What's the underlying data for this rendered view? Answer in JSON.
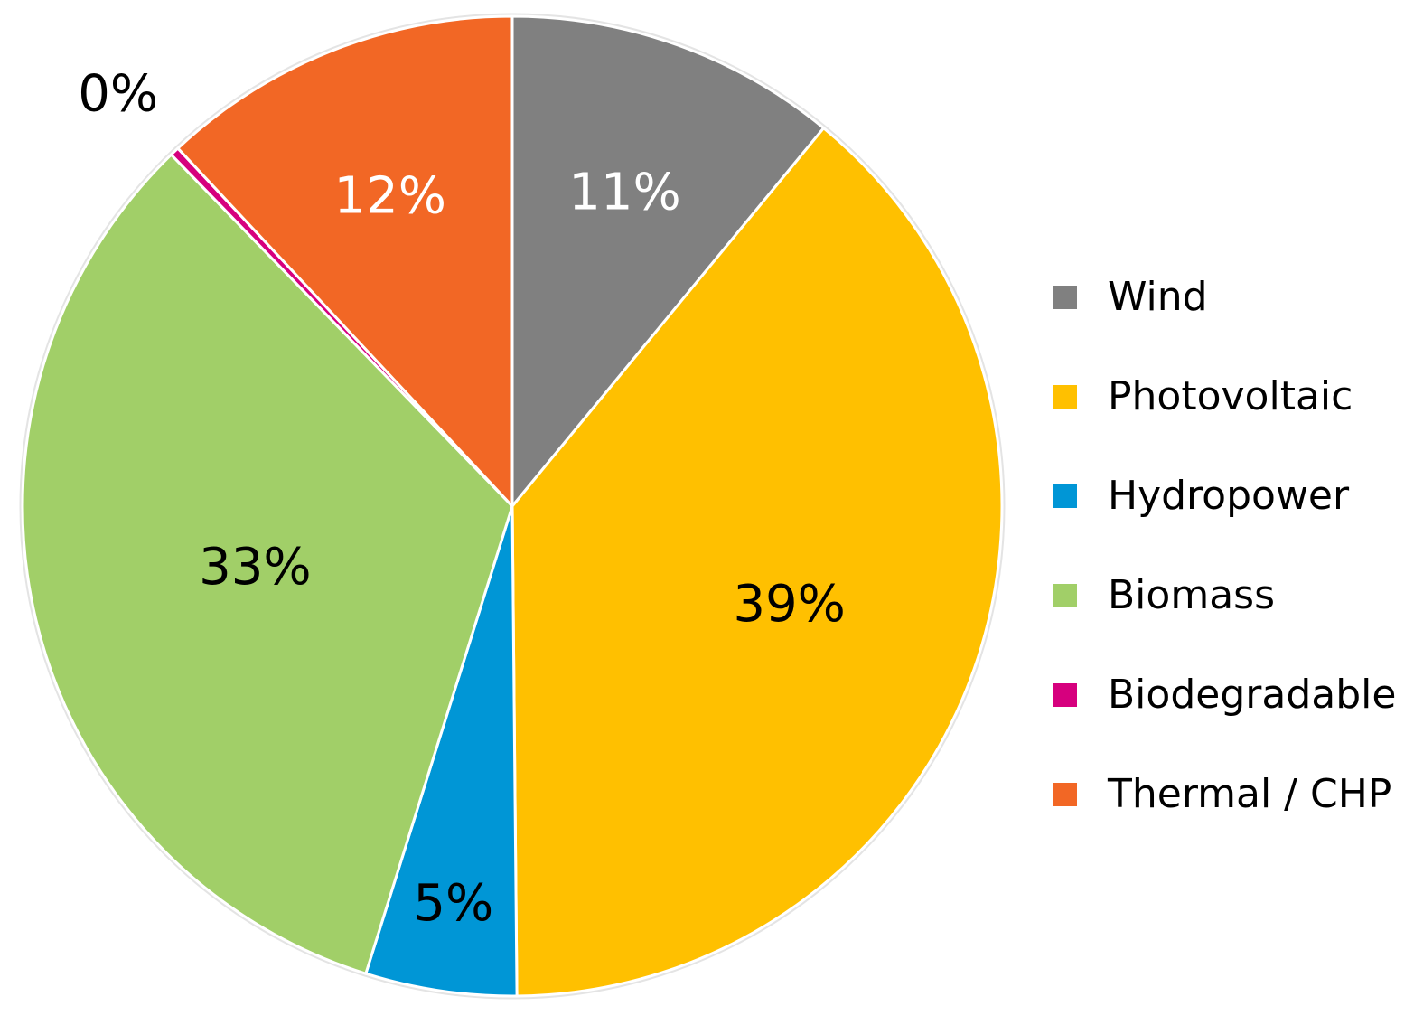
{
  "chart_data": {
    "type": "pie",
    "title": "",
    "start_angle_deg": 0,
    "direction": "clockwise",
    "slices": [
      {
        "name": "Wind",
        "value": 11,
        "label": "11%",
        "color": "#808080",
        "label_color": "#ffffff"
      },
      {
        "name": "Photovoltaic",
        "value": 39,
        "label": "39%",
        "color": "#ffc000",
        "label_color": "#000000"
      },
      {
        "name": "Hydropower",
        "value": 5,
        "label": "5%",
        "color": "#0096d6",
        "label_color": "#000000"
      },
      {
        "name": "Biomass",
        "value": 33,
        "label": "33%",
        "color": "#a1cf68",
        "label_color": "#000000"
      },
      {
        "name": "Biodegradable",
        "value": 0.3,
        "label": "0%",
        "color": "#d6007e",
        "label_color": "#000000"
      },
      {
        "name": "Thermal / CHP",
        "value": 12,
        "label": "12%",
        "color": "#f26725",
        "label_color": "#ffffff"
      }
    ],
    "legend": {
      "position": "right",
      "items": [
        "Wind",
        "Photovoltaic",
        "Hydropower",
        "Biomass",
        "Biodegradable",
        "Thermal / CHP"
      ]
    }
  }
}
